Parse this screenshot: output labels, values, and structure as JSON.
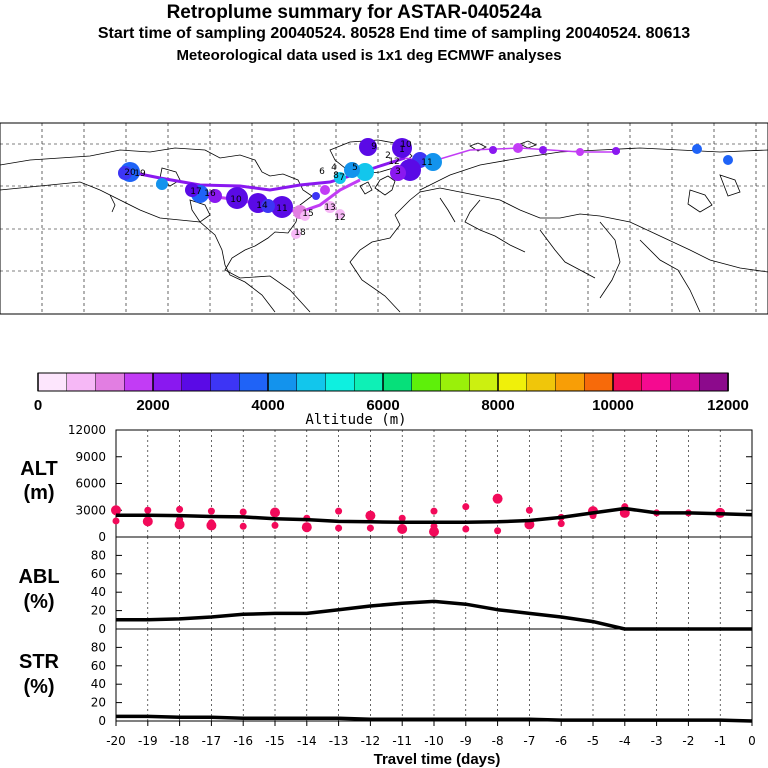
{
  "titles": {
    "main": "Retroplume summary for ASTAR-040524a",
    "sampling": "Start time of sampling 20040524. 80528      End time of sampling 20040524. 80613",
    "meteo": "Meteorological data used is 1x1 deg ECMWF analyses"
  },
  "colorbar": {
    "colors": [
      "#fde6fd",
      "#f6b8f6",
      "#e27ee2",
      "#c23cf5",
      "#8a18f0",
      "#5a0ae6",
      "#3d35f5",
      "#1f63f7",
      "#1393ed",
      "#12c6ec",
      "#0ef0e0",
      "#0ef0b6",
      "#06e07a",
      "#5ef00a",
      "#9af00a",
      "#ccf010",
      "#f0f00a",
      "#f0c60a",
      "#f89e06",
      "#f76a0a",
      "#f20a5a",
      "#f50a90",
      "#d80a9a",
      "#8c0a8c"
    ],
    "ticks": [
      "0",
      "2000",
      "4000",
      "6000",
      "8000",
      "10000",
      "12000"
    ],
    "label": "Altitude (m)"
  },
  "map_labels": {
    "europe": [
      "1",
      "2",
      "3",
      "4",
      "5",
      "6",
      "7",
      "8",
      "9",
      "10",
      "11",
      "12"
    ],
    "america": [
      "10",
      "11",
      "12",
      "13",
      "14",
      "15",
      "16",
      "17",
      "18",
      "19",
      "20"
    ]
  },
  "chart_data": [
    {
      "type": "line",
      "name": "ALT",
      "ylabel": "ALT (m)",
      "ylim": [
        0,
        12000
      ],
      "yticks": [
        0,
        3000,
        6000,
        9000,
        12000
      ],
      "x": [
        -20,
        -19,
        -18,
        -17,
        -16,
        -15,
        -14,
        -13,
        -12,
        -11,
        -10,
        -9,
        -8,
        -7,
        -6,
        -5,
        -4,
        -3,
        -2,
        -1,
        0
      ],
      "values": [
        2450,
        2450,
        2400,
        2300,
        2250,
        2050,
        1950,
        1750,
        1700,
        1650,
        1650,
        1650,
        1700,
        1850,
        2200,
        2700,
        3200,
        2700,
        2700,
        2600,
        2500
      ],
      "points": [
        {
          "x": -20,
          "y": 3000
        },
        {
          "x": -20,
          "y": 1800
        },
        {
          "x": -19,
          "y": 3000
        },
        {
          "x": -19,
          "y": 1750
        },
        {
          "x": -18,
          "y": 3100
        },
        {
          "x": -18,
          "y": 1950
        },
        {
          "x": -18,
          "y": 1400
        },
        {
          "x": -17,
          "y": 2900
        },
        {
          "x": -17,
          "y": 1600
        },
        {
          "x": -17,
          "y": 1300
        },
        {
          "x": -16,
          "y": 2800
        },
        {
          "x": -16,
          "y": 1200
        },
        {
          "x": -15,
          "y": 2750
        },
        {
          "x": -15,
          "y": 1300
        },
        {
          "x": -14,
          "y": 2100
        },
        {
          "x": -14,
          "y": 1100
        },
        {
          "x": -13,
          "y": 2900
        },
        {
          "x": -13,
          "y": 1000
        },
        {
          "x": -12,
          "y": 2400
        },
        {
          "x": -12,
          "y": 1000
        },
        {
          "x": -11,
          "y": 2100
        },
        {
          "x": -11,
          "y": 900
        },
        {
          "x": -10,
          "y": 2900
        },
        {
          "x": -10,
          "y": 1200
        },
        {
          "x": -10,
          "y": 600
        },
        {
          "x": -9,
          "y": 3400
        },
        {
          "x": -9,
          "y": 900
        },
        {
          "x": -8,
          "y": 4300
        },
        {
          "x": -8,
          "y": 700
        },
        {
          "x": -7,
          "y": 3000
        },
        {
          "x": -7,
          "y": 1400
        },
        {
          "x": -6,
          "y": 2200
        },
        {
          "x": -6,
          "y": 1500
        },
        {
          "x": -5,
          "y": 2900
        },
        {
          "x": -5,
          "y": 2400
        },
        {
          "x": -4,
          "y": 3400
        },
        {
          "x": -4,
          "y": 2700
        },
        {
          "x": -3,
          "y": 2700
        },
        {
          "x": -2,
          "y": 2700
        },
        {
          "x": -1,
          "y": 2700
        }
      ]
    },
    {
      "type": "line",
      "name": "ABL",
      "ylabel": "ABL (%)",
      "ylim": [
        0,
        100
      ],
      "yticks": [
        0,
        20,
        40,
        60,
        80
      ],
      "x": [
        -20,
        -19,
        -18,
        -17,
        -16,
        -15,
        -14,
        -13,
        -12,
        -11,
        -10,
        -9,
        -8,
        -7,
        -6,
        -5,
        -4,
        -3,
        -2,
        -1,
        0
      ],
      "values": [
        10,
        10,
        11,
        13,
        16,
        17,
        17,
        21,
        25,
        28,
        30,
        27,
        21,
        17,
        13,
        8,
        0,
        0,
        0,
        0,
        0
      ]
    },
    {
      "type": "line",
      "name": "STR",
      "ylabel": "STR (%)",
      "ylim": [
        0,
        100
      ],
      "yticks": [
        0,
        20,
        40,
        60,
        80
      ],
      "x": [
        -20,
        -19,
        -18,
        -17,
        -16,
        -15,
        -14,
        -13,
        -12,
        -11,
        -10,
        -9,
        -8,
        -7,
        -6,
        -5,
        -4,
        -3,
        -2,
        -1,
        0
      ],
      "values": [
        5,
        5,
        4,
        4,
        3,
        3,
        3,
        3,
        2,
        2,
        2,
        2,
        2,
        2,
        1,
        1,
        1,
        1,
        1,
        1,
        0
      ]
    }
  ],
  "axes": {
    "side_labels": {
      "alt": [
        "ALT",
        "(m)"
      ],
      "abl": [
        "ABL",
        "(%)"
      ],
      "str": [
        "STR",
        "(%)"
      ]
    },
    "xticks": [
      "-20",
      "-19",
      "-18",
      "-17",
      "-16",
      "-15",
      "-14",
      "-13",
      "-12",
      "-11",
      "-10",
      "-9",
      "-8",
      "-7",
      "-6",
      "-5",
      "-4",
      "-3",
      "-2",
      "-1",
      "0"
    ],
    "xlabel": "Travel time (days)"
  }
}
